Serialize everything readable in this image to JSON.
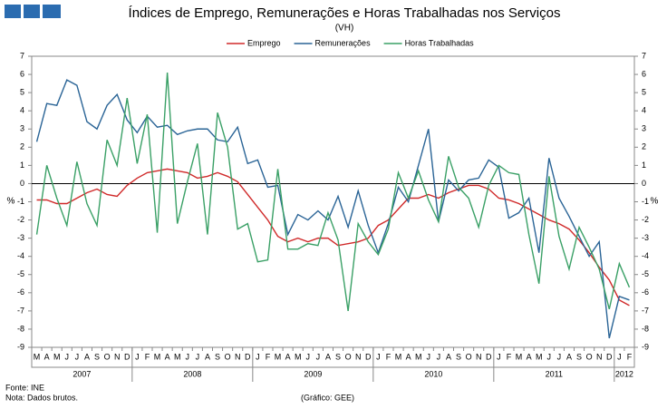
{
  "chart_data": {
    "type": "line",
    "title": "Índices de Emprego, Remunerações e Horas Trabalhadas nos Serviços",
    "subtitle": "(VH)",
    "y_axis_label": "%",
    "y2_axis_label": "%",
    "categories": [
      "M",
      "A",
      "M",
      "J",
      "J",
      "A",
      "S",
      "O",
      "N",
      "D",
      "J",
      "F",
      "M",
      "A",
      "M",
      "J",
      "J",
      "A",
      "S",
      "O",
      "N",
      "D",
      "J",
      "F",
      "M",
      "A",
      "M",
      "J",
      "J",
      "A",
      "S",
      "O",
      "N",
      "D",
      "J",
      "F",
      "M",
      "A",
      "M",
      "J",
      "J",
      "A",
      "S",
      "O",
      "N",
      "D",
      "J",
      "F",
      "M",
      "A",
      "M",
      "J",
      "J",
      "A",
      "S",
      "O",
      "N",
      "D",
      "J",
      "F"
    ],
    "year_labels": [
      {
        "label": "2007",
        "months": 10
      },
      {
        "label": "2008",
        "months": 12
      },
      {
        "label": "2009",
        "months": 12
      },
      {
        "label": "2010",
        "months": 12
      },
      {
        "label": "2011",
        "months": 12
      },
      {
        "label": "2012",
        "months": 2
      }
    ],
    "series": [
      {
        "name": "Emprego",
        "color": "#d02a2a",
        "values": [
          -0.9,
          -0.9,
          -1.1,
          -1.1,
          -0.8,
          -0.5,
          -0.3,
          -0.6,
          -0.7,
          -0.1,
          0.3,
          0.6,
          0.7,
          0.8,
          0.7,
          0.6,
          0.3,
          0.4,
          0.6,
          0.4,
          0.1,
          -0.6,
          -1.3,
          -2.0,
          -2.9,
          -3.2,
          -3.0,
          -3.2,
          -3.0,
          -3.0,
          -3.4,
          -3.3,
          -3.2,
          -3.0,
          -2.3,
          -2.0,
          -1.4,
          -0.8,
          -0.8,
          -0.6,
          -0.8,
          -0.5,
          -0.3,
          -0.1,
          -0.1,
          -0.3,
          -0.8,
          -0.9,
          -1.1,
          -1.4,
          -1.7,
          -2.0,
          -2.2,
          -2.5,
          -3.1,
          -3.8,
          -4.6,
          -5.3,
          -6.4,
          -6.7
        ]
      },
      {
        "name": "Remunerações",
        "color": "#2a6496",
        "values": [
          2.3,
          4.4,
          4.3,
          5.7,
          5.4,
          3.4,
          3.0,
          4.3,
          4.9,
          3.5,
          2.8,
          3.7,
          3.1,
          3.2,
          2.7,
          2.9,
          3.0,
          3.0,
          2.4,
          2.3,
          3.1,
          1.1,
          1.3,
          -0.2,
          -0.1,
          -2.8,
          -1.7,
          -2.0,
          -1.5,
          -2.0,
          -0.7,
          -2.4,
          -0.4,
          -2.3,
          -3.8,
          -2.2,
          -0.2,
          -1.0,
          1.0,
          3.0,
          -2.1,
          0.2,
          -0.4,
          0.2,
          0.3,
          1.3,
          0.9,
          -1.9,
          -1.6,
          -0.8,
          -3.8,
          1.4,
          -0.8,
          -1.8,
          -2.9,
          -4.0,
          -3.2,
          -8.5,
          -6.2,
          -6.4
        ]
      },
      {
        "name": "Horas Trabalhadas",
        "color": "#3aa066",
        "values": [
          -2.8,
          1.0,
          -0.8,
          -2.3,
          1.2,
          -1.1,
          -2.3,
          2.4,
          1.0,
          4.7,
          1.1,
          3.8,
          -2.7,
          6.1,
          -2.2,
          0.1,
          2.2,
          -2.8,
          3.9,
          2.0,
          -2.5,
          -2.2,
          -4.3,
          -4.2,
          0.8,
          -3.6,
          -3.6,
          -3.3,
          -3.4,
          -1.6,
          -3.1,
          -7.0,
          -2.2,
          -3.2,
          -3.9,
          -2.5,
          0.6,
          -0.8,
          0.7,
          -0.9,
          -2.1,
          1.5,
          -0.2,
          -0.8,
          -2.4,
          -0.1,
          1.0,
          0.6,
          0.5,
          -2.8,
          -5.5,
          0.4,
          -2.9,
          -4.7,
          -2.4,
          -3.5,
          -4.7,
          -6.9,
          -4.4,
          -5.7
        ]
      }
    ],
    "ylim": [
      -9,
      7
    ],
    "yticks": [
      -9,
      -8,
      -7,
      -6,
      -5,
      -4,
      -3,
      -2,
      -1,
      0,
      1,
      2,
      3,
      4,
      5,
      6,
      7
    ],
    "y2lim": [
      -9,
      7
    ],
    "y2ticks": [
      -9,
      -8,
      -7,
      -6,
      -5,
      -4,
      -3,
      -2,
      -1,
      0,
      1,
      2,
      3,
      4,
      5,
      6,
      7
    ],
    "legend": "top",
    "source": "Fonte: INE",
    "note": "Nota: Dados brutos.",
    "credit": "(Gráfico: GEE)"
  }
}
